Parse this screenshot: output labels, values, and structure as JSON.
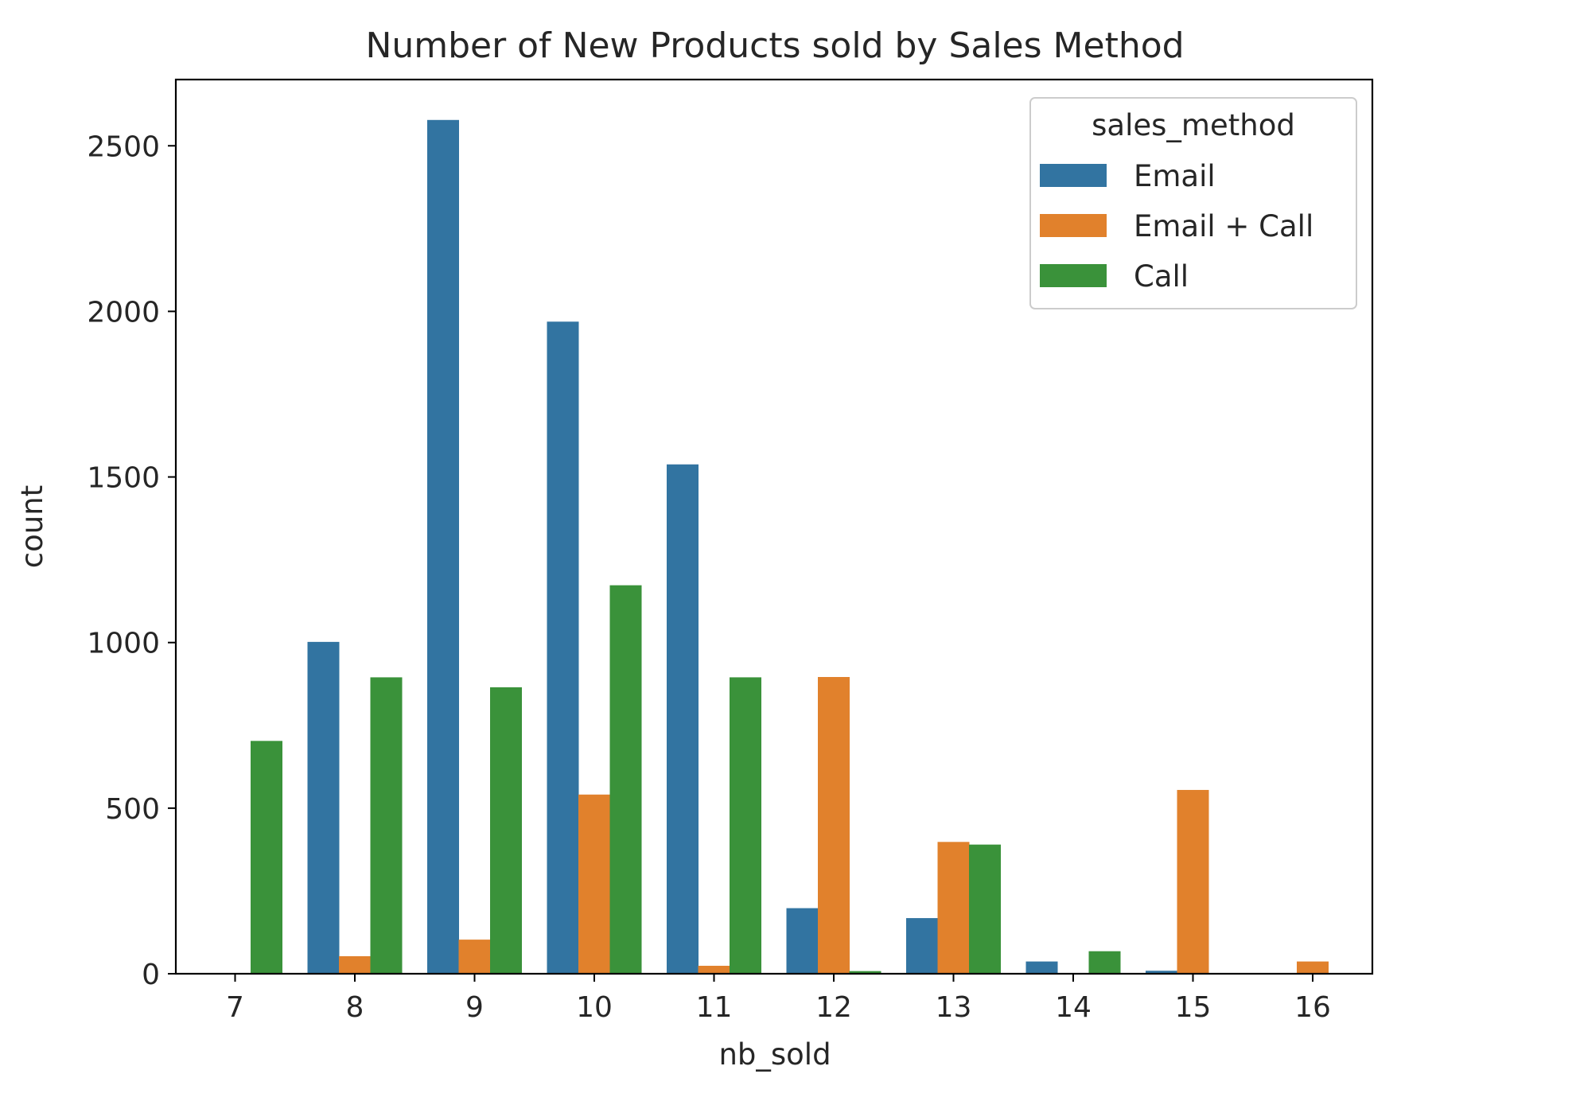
{
  "chart_data": {
    "type": "bar",
    "title": "Number of New Products sold by Sales Method",
    "xlabel": "nb_sold",
    "ylabel": "count",
    "categories": [
      "7",
      "8",
      "9",
      "10",
      "11",
      "12",
      "13",
      "14",
      "15",
      "16"
    ],
    "ylim": [
      0,
      2700
    ],
    "yticks": [
      0,
      500,
      1000,
      1500,
      2000,
      2500
    ],
    "grid": false,
    "legend": {
      "title": "sales_method",
      "position": "top-right"
    },
    "series": [
      {
        "name": "Email",
        "color": "#3274a1",
        "values": [
          0,
          1002,
          2578,
          1969,
          1538,
          198,
          168,
          37,
          9,
          0
        ]
      },
      {
        "name": "Email + Call",
        "color": "#e1812c",
        "values": [
          0,
          53,
          103,
          541,
          24,
          896,
          398,
          0,
          555,
          37
        ]
      },
      {
        "name": "Call",
        "color": "#3a923a",
        "values": [
          703,
          895,
          865,
          1173,
          895,
          8,
          390,
          68,
          0,
          0
        ]
      }
    ]
  }
}
